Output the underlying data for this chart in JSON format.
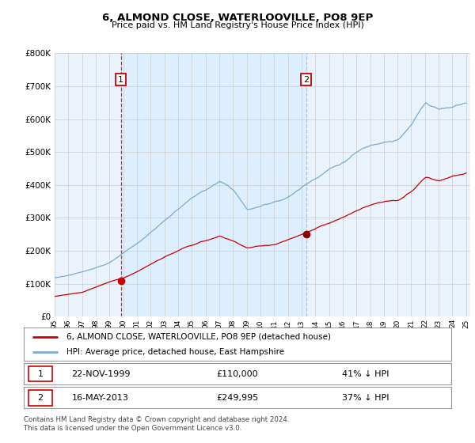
{
  "title1": "6, ALMOND CLOSE, WATERLOOVILLE, PO8 9EP",
  "title2": "Price paid vs. HM Land Registry's House Price Index (HPI)",
  "hpi_color": "#7aaad0",
  "price_color": "#cc0000",
  "vline1_color": "#cc0000",
  "vline2_color": "#7aaad0",
  "sale1_date": "22-NOV-1999",
  "sale1_price": "£110,000",
  "sale1_hpi": "41% ↓ HPI",
  "sale2_date": "16-MAY-2013",
  "sale2_price": "£249,995",
  "sale2_hpi": "37% ↓ HPI",
  "legend1": "6, ALMOND CLOSE, WATERLOOVILLE, PO8 9EP (detached house)",
  "legend2": "HPI: Average price, detached house, East Hampshire",
  "footnote": "Contains HM Land Registry data © Crown copyright and database right 2024.\nThis data is licensed under the Open Government Licence v3.0.",
  "ylim": [
    0,
    800000
  ],
  "yticks": [
    0,
    100000,
    200000,
    300000,
    400000,
    500000,
    600000,
    700000,
    800000
  ],
  "shade_color": "#ddeeff",
  "background_color": "#eaf3fb",
  "plot_bg": "#eaf3fb"
}
